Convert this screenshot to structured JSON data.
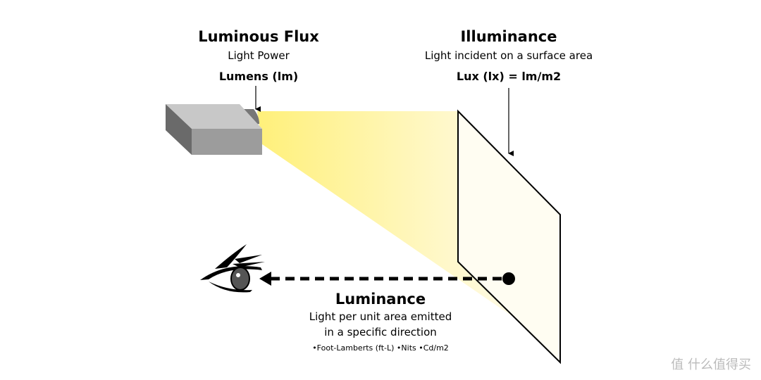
{
  "flux": {
    "title": "Luminous Flux",
    "subtitle": "Light Power",
    "unit": "Lumens (lm)"
  },
  "illuminance": {
    "title": "Illuminance",
    "subtitle": "Light incident on a surface area",
    "unit": "Lux (lx) = lm/m2"
  },
  "luminance": {
    "title": "Luminance",
    "line1": "Light per unit area emitted",
    "line2": "in a specific direction",
    "units": "•Foot-Lamberts (ft-L)  •Nits  •Cd/m2"
  },
  "watermark": "值 什么值得买",
  "colors": {
    "beam": "#fff07a",
    "box_top": "#c8c8c8",
    "box_front": "#9c9c9c",
    "box_side": "#6a6a6a"
  }
}
